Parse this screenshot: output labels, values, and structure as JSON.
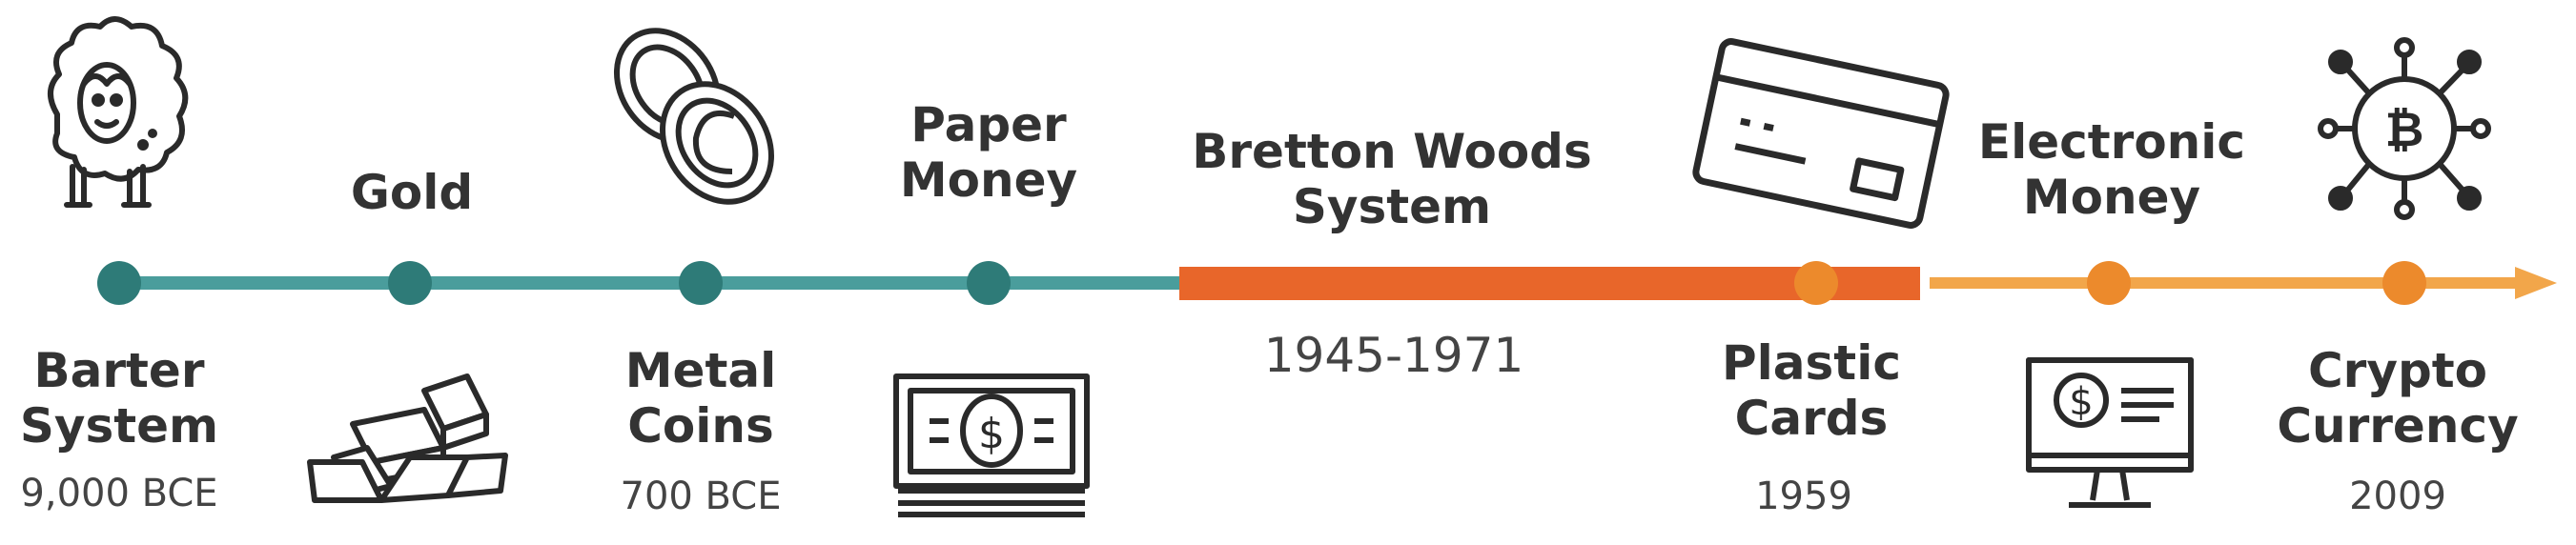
{
  "colors": {
    "teal": "#4a9d9c",
    "teal_dot": "#2e7b78",
    "orange_bar": "#e8662a",
    "light_orange": "#f2a64a",
    "dot_orange": "#ec8a2c",
    "icon": "#2a2a2a"
  },
  "events": [
    {
      "id": "barter",
      "title": [
        "Barter",
        "System"
      ],
      "date": "9,000 BCE",
      "icon": "sheep-icon"
    },
    {
      "id": "gold",
      "title": [
        "Gold"
      ],
      "date": "",
      "icon": "gold-bars-icon"
    },
    {
      "id": "metal",
      "title": [
        "Metal",
        "Coins"
      ],
      "date": "700 BCE",
      "icon": "coins-icon"
    },
    {
      "id": "paper",
      "title": [
        "Paper",
        "Money"
      ],
      "date": "",
      "icon": "banknote-icon"
    },
    {
      "id": "bretton",
      "title": [
        "Bretton Woods",
        "System"
      ],
      "date": "1945-1971",
      "icon": ""
    },
    {
      "id": "plastic",
      "title": [
        "Plastic",
        "Cards"
      ],
      "date": "1959",
      "icon": "credit-card-icon"
    },
    {
      "id": "electronic",
      "title": [
        "Electronic",
        "Money"
      ],
      "date": "",
      "icon": "computer-dollar-icon"
    },
    {
      "id": "crypto",
      "title": [
        "Crypto",
        "Currency"
      ],
      "date": "2009",
      "icon": "bitcoin-network-icon"
    }
  ]
}
